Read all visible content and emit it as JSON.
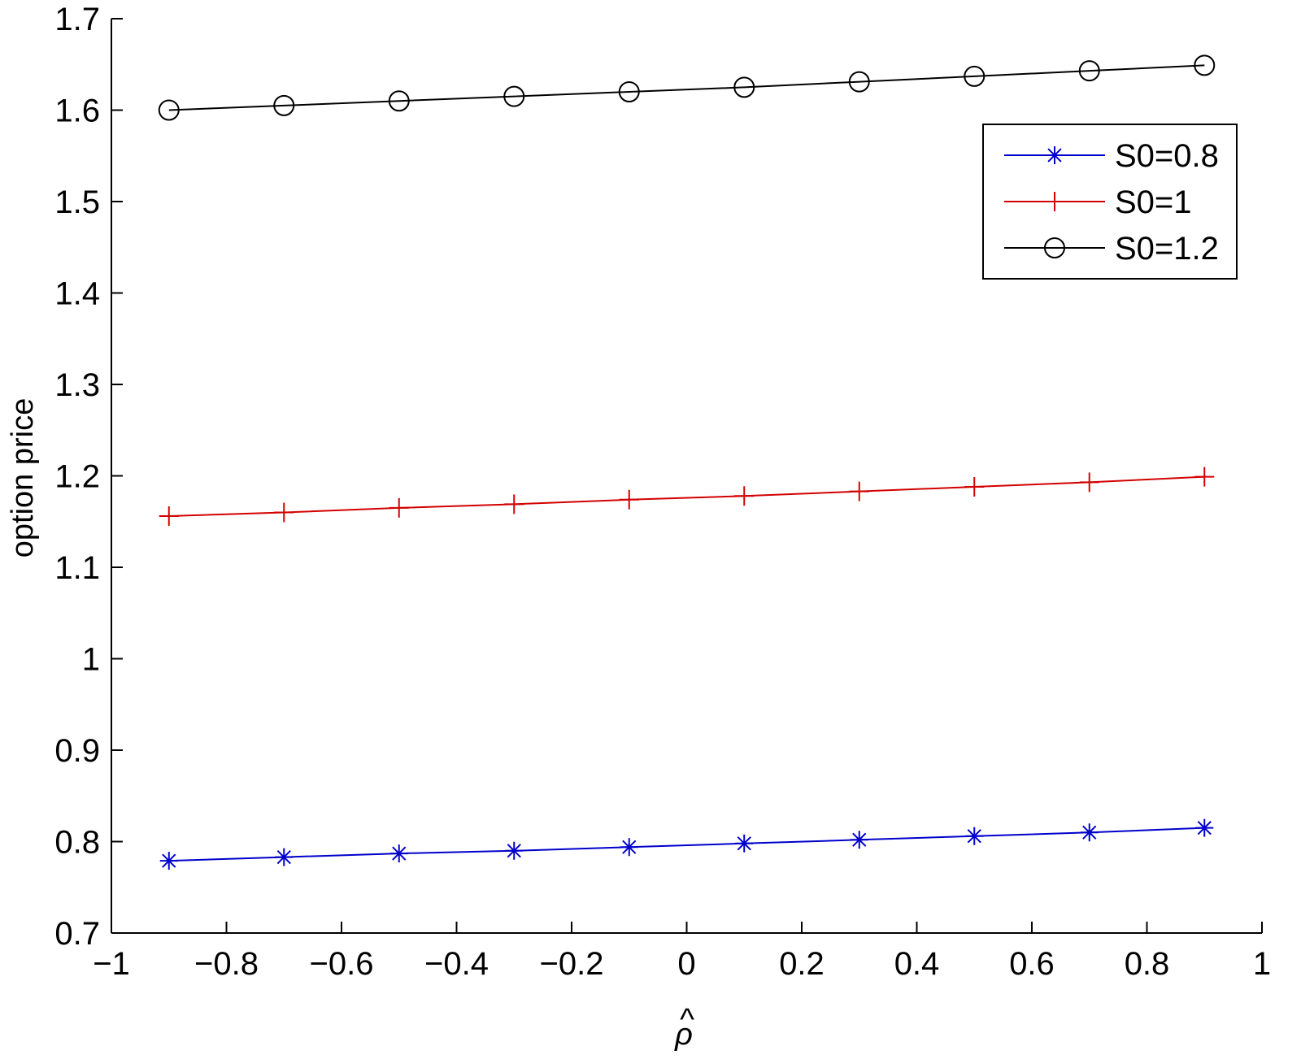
{
  "chart_data": {
    "type": "line",
    "title": "",
    "xlabel": "ρ",
    "xlabel_accent": "^",
    "ylabel": "option price",
    "xlim": [
      -1,
      1
    ],
    "ylim": [
      0.7,
      1.7
    ],
    "x_ticks": [
      "−1",
      "−0.8",
      "−0.6",
      "−0.4",
      "−0.2",
      "0",
      "0.2",
      "0.4",
      "0.6",
      "0.8",
      "1"
    ],
    "x_tick_values": [
      -1,
      -0.8,
      -0.6,
      -0.4,
      -0.2,
      0,
      0.2,
      0.4,
      0.6,
      0.8,
      1
    ],
    "y_ticks": [
      "0.7",
      "0.8",
      "0.9",
      "1",
      "1.1",
      "1.2",
      "1.3",
      "1.4",
      "1.5",
      "1.6",
      "1.7"
    ],
    "y_tick_values": [
      0.7,
      0.8,
      0.9,
      1.0,
      1.1,
      1.2,
      1.3,
      1.4,
      1.5,
      1.6,
      1.7
    ],
    "grid": false,
    "legend_position": "top-right",
    "x": [
      -0.9,
      -0.7,
      -0.5,
      -0.3,
      -0.1,
      0.1,
      0.3,
      0.5,
      0.7,
      0.9
    ],
    "series": [
      {
        "name": "S0=0.8",
        "color": "#0000cc",
        "marker": "asterisk",
        "values": [
          0.779,
          0.783,
          0.787,
          0.79,
          0.794,
          0.798,
          0.802,
          0.806,
          0.81,
          0.815
        ]
      },
      {
        "name": "S0=1",
        "color": "#d40000",
        "marker": "plus",
        "values": [
          1.156,
          1.16,
          1.165,
          1.169,
          1.174,
          1.178,
          1.183,
          1.188,
          1.193,
          1.199
        ]
      },
      {
        "name": "S0=1.2",
        "color": "#000000",
        "marker": "circle",
        "values": [
          1.6,
          1.605,
          1.61,
          1.615,
          1.62,
          1.625,
          1.631,
          1.637,
          1.643,
          1.649
        ]
      }
    ]
  }
}
